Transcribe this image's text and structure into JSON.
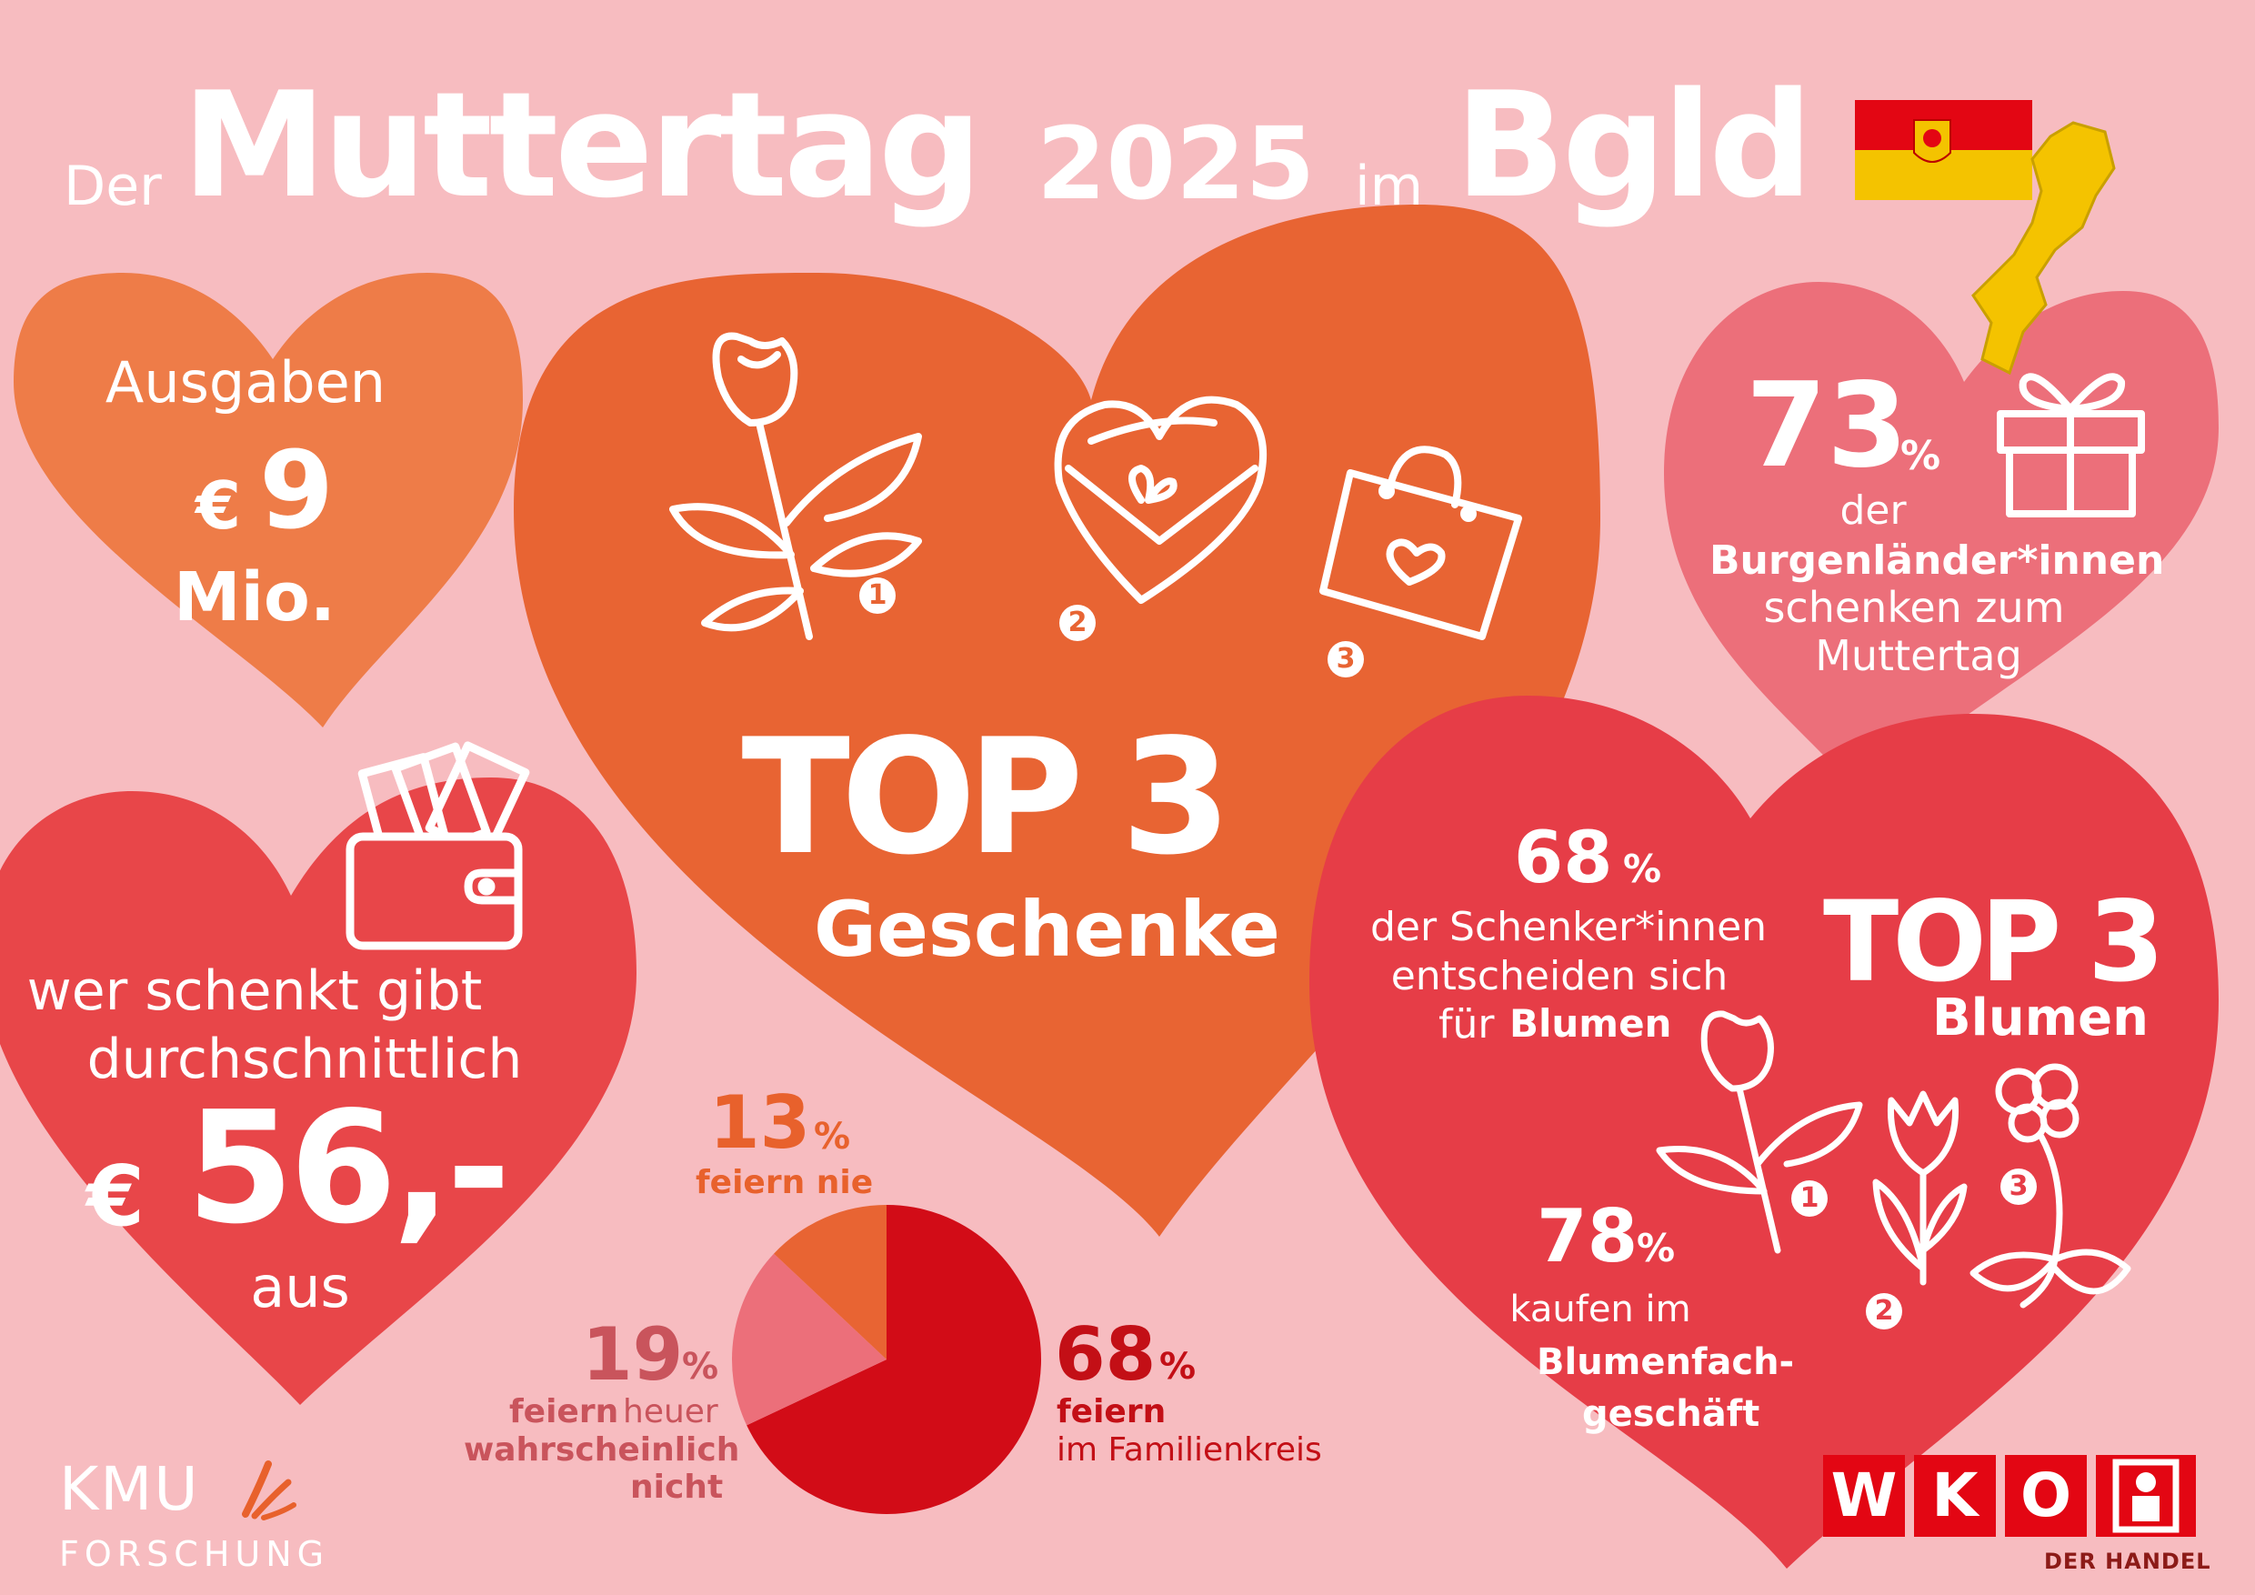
{
  "title": {
    "prefix": "Der",
    "main": "Muttertag",
    "year": "2025",
    "mid": "im",
    "region": "Bgld"
  },
  "spending": {
    "label": "Ausgaben",
    "currency": "€",
    "amount": "9",
    "unit": "Mio."
  },
  "average": {
    "line1": "wer schenkt gibt",
    "line2": "durchschnittlich",
    "currency": "€",
    "amount": "56,-",
    "suffix": "aus"
  },
  "top_gifts": {
    "heading": "TOP 3",
    "subheading": "Geschenke",
    "ranks": [
      "1",
      "2",
      "3"
    ],
    "icons": [
      "rose-icon",
      "heart-gift-box-icon",
      "shopping-bag-heart-icon"
    ]
  },
  "gifting_share": {
    "value": "73",
    "unit": "%",
    "line1": "der",
    "line2": "Burgenländer*innen",
    "line3": "schenken zum",
    "line4": "Muttertag"
  },
  "flowers": {
    "share_value": "68",
    "share_unit": "%",
    "line1": "der Schenker*innen",
    "line2": "entscheiden sich",
    "line3_prefix": "für",
    "line3_bold": "Blumen",
    "heading": "TOP 3",
    "subheading": "Blumen",
    "ranks": [
      "1",
      "2",
      "3"
    ],
    "icons": [
      "rose-icon",
      "tulip-icon",
      "orchid-icon"
    ],
    "shop_value": "78",
    "shop_unit": "%",
    "shop_line1": "kaufen im",
    "shop_line2": "Blumenfach-",
    "shop_line3": "geschäft"
  },
  "pie_labels": {
    "never_value": "13",
    "never_unit": "%",
    "never_label": "feiern nie",
    "unlikely_value": "19",
    "unlikely_unit": "%",
    "unlikely_bold": "feiern",
    "unlikely_rest": "heuer",
    "unlikely_line2": "wahrscheinlich",
    "unlikely_line3": "nicht",
    "family_value": "68",
    "family_unit": "%",
    "family_bold": "feiern",
    "family_line2": "im Familienkreis"
  },
  "chart_data": {
    "type": "pie",
    "categories": [
      "feiern im Familienkreis",
      "feiern heuer wahrscheinlich nicht",
      "feiern nie"
    ],
    "values": [
      68,
      19,
      13
    ],
    "unit": "%",
    "colors": [
      "#d20c17",
      "#ec6f7a",
      "#e86433"
    ]
  },
  "logos": {
    "kmu_line1": "KMU",
    "kmu_line2": "FORSCHUNG",
    "wko_letters": [
      "W",
      "K",
      "O"
    ],
    "wko_sub": "DER HANDEL"
  },
  "colors": {
    "background": "#f7bcc0",
    "heart_orange_light": "#ee7c48",
    "heart_orange": "#e86433",
    "heart_pink": "#ec6f7a",
    "heart_red": "#e84649",
    "heart_red2": "#e63d47",
    "wko_red": "#e30613",
    "text_orange": "#e8612c",
    "text_rose": "#c9545c",
    "text_red": "#c30f16"
  }
}
